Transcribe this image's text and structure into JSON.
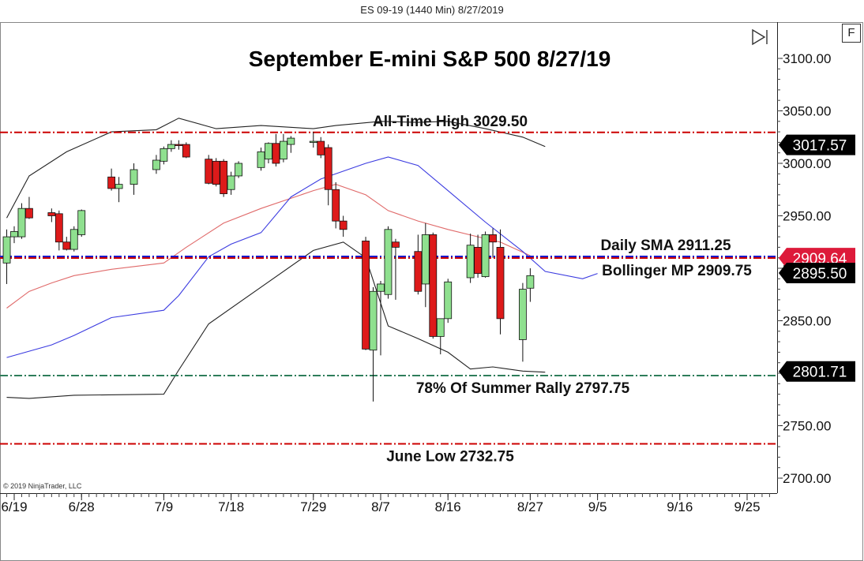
{
  "header": {
    "instrument_title": "ES 09-19 (1440 Min)  8/27/2019"
  },
  "toolbar": {
    "f_button_label": "F"
  },
  "copyright": "© 2019 NinjaTrader, LLC",
  "colors": {
    "bull": "#8fe08f",
    "bear": "#dd1a1a",
    "ma_red": "#e06a6a",
    "ma_blue": "#3b3be0",
    "band_black": "#222222",
    "level_red": "#cc0000",
    "level_blue": "#1a1acc",
    "level_green": "#2e7d5a",
    "label_red": "#dd1a3a",
    "label_black": "#000000"
  },
  "chart_data": {
    "type": "candlestick",
    "title": "September E-mini S&P 500 8/27/19",
    "ylim": [
      2680,
      3130
    ],
    "y_ticks": [
      2700,
      2750,
      2800,
      2850,
      2900,
      2950,
      3000,
      3050,
      3100
    ],
    "y_tick_labels": [
      "2700.00",
      "2750.00",
      "2800.00",
      "2850.00",
      "2900.00",
      "2950.00",
      "3000.00",
      "3050.00",
      "3100.00"
    ],
    "x_ticks": [
      {
        "label": "6/19",
        "date": "2019-06-19"
      },
      {
        "label": "6/28",
        "date": "2019-06-28"
      },
      {
        "label": "7/9",
        "date": "2019-07-09"
      },
      {
        "label": "7/18",
        "date": "2019-07-18"
      },
      {
        "label": "7/29",
        "date": "2019-07-29"
      },
      {
        "label": "8/7",
        "date": "2019-08-07"
      },
      {
        "label": "8/16",
        "date": "2019-08-16"
      },
      {
        "label": "8/27",
        "date": "2019-08-27"
      },
      {
        "label": "9/5",
        "date": "2019-09-05"
      },
      {
        "label": "9/16",
        "date": "2019-09-16"
      },
      {
        "label": "9/25",
        "date": "2019-09-25"
      }
    ],
    "x_range": [
      "2019-06-18",
      "2019-09-30"
    ],
    "candles": [
      {
        "date": "2019-06-18",
        "o": 2905,
        "h": 2937,
        "l": 2885,
        "c": 2930
      },
      {
        "date": "2019-06-19",
        "o": 2930,
        "h": 2940,
        "l": 2924,
        "c": 2935
      },
      {
        "date": "2019-06-20",
        "o": 2930,
        "h": 2962,
        "l": 2928,
        "c": 2957
      },
      {
        "date": "2019-06-21",
        "o": 2957,
        "h": 2968,
        "l": 2947,
        "c": 2948
      },
      {
        "date": "2019-06-24",
        "o": 2953,
        "h": 2957,
        "l": 2944,
        "c": 2950
      },
      {
        "date": "2019-06-25",
        "o": 2952,
        "h": 2955,
        "l": 2917,
        "c": 2925
      },
      {
        "date": "2019-06-26",
        "o": 2925,
        "h": 2930,
        "l": 2917,
        "c": 2918
      },
      {
        "date": "2019-06-27",
        "o": 2918,
        "h": 2940,
        "l": 2916,
        "c": 2937
      },
      {
        "date": "2019-06-28",
        "o": 2932,
        "h": 2956,
        "l": 2930,
        "c": 2955
      },
      {
        "date": "2019-07-02",
        "o": 2987,
        "h": 2995,
        "l": 2974,
        "c": 2976
      },
      {
        "date": "2019-07-03",
        "o": 2976,
        "h": 2987,
        "l": 2963,
        "c": 2980
      },
      {
        "date": "2019-07-05",
        "o": 2980,
        "h": 3000,
        "l": 2970,
        "c": 2994
      },
      {
        "date": "2019-07-08",
        "o": 2994,
        "h": 3008,
        "l": 2990,
        "c": 3003
      },
      {
        "date": "2019-07-09",
        "o": 3002,
        "h": 3016,
        "l": 2999,
        "c": 3014
      },
      {
        "date": "2019-07-10",
        "o": 3014,
        "h": 3022,
        "l": 3011,
        "c": 3018
      },
      {
        "date": "2019-07-11",
        "o": 3018,
        "h": 3022,
        "l": 3013,
        "c": 3017
      },
      {
        "date": "2019-07-12",
        "o": 3018,
        "h": 3020,
        "l": 3005,
        "c": 3006
      },
      {
        "date": "2019-07-15",
        "o": 3004,
        "h": 3008,
        "l": 2980,
        "c": 2981
      },
      {
        "date": "2019-07-16",
        "o": 3002,
        "h": 3005,
        "l": 2978,
        "c": 2980
      },
      {
        "date": "2019-07-17",
        "o": 3002,
        "h": 3004,
        "l": 2968,
        "c": 2971
      },
      {
        "date": "2019-07-18",
        "o": 2975,
        "h": 2992,
        "l": 2970,
        "c": 2988
      },
      {
        "date": "2019-07-19",
        "o": 2988,
        "h": 3002,
        "l": 2986,
        "c": 3000
      },
      {
        "date": "2019-07-22",
        "o": 2996,
        "h": 3015,
        "l": 2993,
        "c": 3011
      },
      {
        "date": "2019-07-23",
        "o": 3004,
        "h": 3020,
        "l": 3000,
        "c": 3019
      },
      {
        "date": "2019-07-24",
        "o": 3019,
        "h": 3028,
        "l": 2997,
        "c": 3000
      },
      {
        "date": "2019-07-25",
        "o": 3004,
        "h": 3028,
        "l": 3001,
        "c": 3021
      },
      {
        "date": "2019-07-26",
        "o": 3018,
        "h": 3026,
        "l": 3010,
        "c": 3024
      },
      {
        "date": "2019-07-29",
        "o": 3020,
        "h": 3030,
        "l": 3015,
        "c": 3021
      },
      {
        "date": "2019-07-30",
        "o": 3021,
        "h": 3025,
        "l": 3005,
        "c": 3008
      },
      {
        "date": "2019-07-31",
        "o": 3015,
        "h": 3018,
        "l": 2960,
        "c": 2975
      },
      {
        "date": "2019-08-01",
        "o": 2975,
        "h": 2982,
        "l": 2938,
        "c": 2945
      },
      {
        "date": "2019-08-02",
        "o": 2945,
        "h": 2950,
        "l": 2930,
        "c": 2937
      },
      {
        "date": "2019-08-05",
        "o": 2926,
        "h": 2930,
        "l": 2822,
        "c": 2823
      },
      {
        "date": "2019-08-06",
        "o": 2822,
        "h": 2882,
        "l": 2773,
        "c": 2878
      },
      {
        "date": "2019-08-07",
        "o": 2878,
        "h": 2888,
        "l": 2817,
        "c": 2885
      },
      {
        "date": "2019-08-08",
        "o": 2875,
        "h": 2940,
        "l": 2871,
        "c": 2937
      },
      {
        "date": "2019-08-09",
        "o": 2925,
        "h": 2928,
        "l": 2870,
        "c": 2920
      },
      {
        "date": "2019-08-12",
        "o": 2916,
        "h": 2932,
        "l": 2875,
        "c": 2878
      },
      {
        "date": "2019-08-13",
        "o": 2885,
        "h": 2943,
        "l": 2863,
        "c": 2932
      },
      {
        "date": "2019-08-14",
        "o": 2932,
        "h": 2934,
        "l": 2833,
        "c": 2835
      },
      {
        "date": "2019-08-15",
        "o": 2835,
        "h": 2850,
        "l": 2818,
        "c": 2852
      },
      {
        "date": "2019-08-16",
        "o": 2852,
        "h": 2890,
        "l": 2848,
        "c": 2887
      },
      {
        "date": "2019-08-19",
        "o": 2891,
        "h": 2933,
        "l": 2886,
        "c": 2922
      },
      {
        "date": "2019-08-20",
        "o": 2920,
        "h": 2932,
        "l": 2891,
        "c": 2895
      },
      {
        "date": "2019-08-21",
        "o": 2892,
        "h": 2935,
        "l": 2891,
        "c": 2932
      },
      {
        "date": "2019-08-22",
        "o": 2932,
        "h": 2938,
        "l": 2910,
        "c": 2925
      },
      {
        "date": "2019-08-23",
        "o": 2920,
        "h": 2937,
        "l": 2837,
        "c": 2852
      },
      {
        "date": "2019-08-26",
        "o": 2832,
        "h": 2886,
        "l": 2811,
        "c": 2880
      },
      {
        "date": "2019-08-27",
        "o": 2881,
        "h": 2900,
        "l": 2868,
        "c": 2893
      }
    ],
    "lines": [
      {
        "color_key": "ma_red",
        "points": [
          [
            "2019-06-18",
            2862
          ],
          [
            "2019-06-21",
            2878
          ],
          [
            "2019-06-24",
            2886
          ],
          [
            "2019-06-27",
            2893
          ],
          [
            "2019-07-02",
            2899
          ],
          [
            "2019-07-09",
            2905
          ],
          [
            "2019-07-12",
            2920
          ],
          [
            "2019-07-17",
            2943
          ],
          [
            "2019-07-22",
            2957
          ],
          [
            "2019-07-29",
            2974
          ],
          [
            "2019-08-01",
            2980
          ],
          [
            "2019-08-05",
            2970
          ],
          [
            "2019-08-08",
            2955
          ],
          [
            "2019-08-12",
            2945
          ],
          [
            "2019-08-16",
            2937
          ],
          [
            "2019-08-20",
            2930
          ],
          [
            "2019-08-23",
            2925
          ],
          [
            "2019-08-27",
            2912
          ]
        ]
      },
      {
        "color_key": "ma_blue",
        "points": [
          [
            "2019-06-18",
            2815
          ],
          [
            "2019-06-24",
            2827
          ],
          [
            "2019-06-27",
            2836
          ],
          [
            "2019-07-02",
            2853
          ],
          [
            "2019-07-09",
            2860
          ],
          [
            "2019-07-11",
            2874
          ],
          [
            "2019-07-15",
            2911
          ],
          [
            "2019-07-18",
            2923
          ],
          [
            "2019-07-22",
            2934
          ],
          [
            "2019-07-26",
            2968
          ],
          [
            "2019-07-30",
            2985
          ],
          [
            "2019-08-05",
            3000
          ],
          [
            "2019-08-08",
            3006
          ],
          [
            "2019-08-12",
            2998
          ],
          [
            "2019-08-16",
            2974
          ],
          [
            "2019-08-21",
            2944
          ],
          [
            "2019-08-26",
            2916
          ],
          [
            "2019-08-29",
            2897
          ],
          [
            "2019-09-03",
            2890
          ],
          [
            "2019-09-05",
            2895
          ]
        ]
      },
      {
        "color_key": "band_black",
        "points": [
          [
            "2019-06-18",
            2948
          ],
          [
            "2019-06-21",
            2988
          ],
          [
            "2019-06-26",
            3011
          ],
          [
            "2019-07-02",
            3030
          ],
          [
            "2019-07-08",
            3032
          ],
          [
            "2019-07-11",
            3043
          ],
          [
            "2019-07-16",
            3033
          ],
          [
            "2019-07-22",
            3036
          ],
          [
            "2019-07-29",
            3033
          ],
          [
            "2019-08-01",
            3036
          ],
          [
            "2019-08-07",
            3040
          ],
          [
            "2019-08-12",
            3039
          ],
          [
            "2019-08-16",
            3040
          ],
          [
            "2019-08-21",
            3033
          ],
          [
            "2019-08-26",
            3025
          ],
          [
            "2019-08-29",
            3016
          ]
        ]
      },
      {
        "color_key": "band_black",
        "points": [
          [
            "2019-06-18",
            2777
          ],
          [
            "2019-06-21",
            2776
          ],
          [
            "2019-06-27",
            2779
          ],
          [
            "2019-07-09",
            2780
          ],
          [
            "2019-07-11",
            2803
          ],
          [
            "2019-07-15",
            2847
          ],
          [
            "2019-07-22",
            2882
          ],
          [
            "2019-07-29",
            2917
          ],
          [
            "2019-08-02",
            2925
          ],
          [
            "2019-08-05",
            2910
          ],
          [
            "2019-08-08",
            2845
          ],
          [
            "2019-08-12",
            2833
          ],
          [
            "2019-08-16",
            2820
          ],
          [
            "2019-08-19",
            2804
          ],
          [
            "2019-08-22",
            2806
          ],
          [
            "2019-08-26",
            2802
          ],
          [
            "2019-08-29",
            2801
          ]
        ]
      }
    ],
    "levels": [
      {
        "value": 3029.5,
        "label": "All-Time High 3029.50",
        "color_key": "level_red",
        "label_pos": "above"
      },
      {
        "value": 2911.25,
        "label": "Daily SMA 2911.25",
        "color_key": "level_blue",
        "label_pos": "above"
      },
      {
        "value": 2909.75,
        "label": "Bollinger MP 2909.75",
        "color_key": "level_red",
        "label_pos": "below"
      },
      {
        "value": 2797.75,
        "label": "78% Of Summer Rally 2797.75",
        "color_key": "level_green",
        "label_pos": "below"
      },
      {
        "value": 2732.75,
        "label": "June Low 2732.75",
        "color_key": "level_red",
        "label_pos": "below"
      }
    ],
    "price_markers": [
      {
        "value": 3017.57,
        "text": "3017.57",
        "color_key": "label_black"
      },
      {
        "value": 2909.64,
        "text": "2909.64",
        "color_key": "label_red"
      },
      {
        "value": 2895.5,
        "text": "2895.50",
        "color_key": "label_black"
      },
      {
        "value": 2801.71,
        "text": "2801.71",
        "color_key": "label_black"
      }
    ]
  }
}
